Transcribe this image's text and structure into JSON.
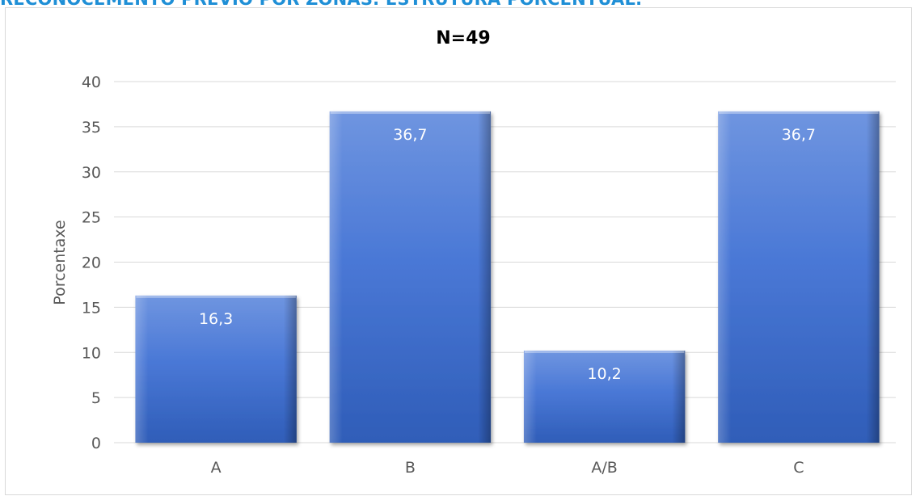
{
  "page": {
    "heading": "RECONOCEMENTO PREVIO POR ZONAS. ESTRUTURA PORCENTUAL."
  },
  "colors": {
    "heading": "#1f8fd6",
    "bar_light": "#6f95e0",
    "bar_mid": "#4a78d6",
    "bar_dark": "#2f5db8",
    "gridline": "#d9d9d9",
    "tick_text": "#595959"
  },
  "chart_data": {
    "type": "bar",
    "title": "N=49",
    "xlabel": "",
    "ylabel": "Porcentaxe",
    "categories": [
      "A",
      "B",
      "A/B",
      "C"
    ],
    "values": [
      16.3,
      36.7,
      10.2,
      36.7
    ],
    "data_labels": [
      "16,3",
      "36,7",
      "10,2",
      "36,7"
    ],
    "ylim": [
      0,
      40
    ],
    "yticks": [
      0,
      5,
      10,
      15,
      20,
      25,
      30,
      35,
      40
    ],
    "grid": true,
    "legend": "none"
  }
}
